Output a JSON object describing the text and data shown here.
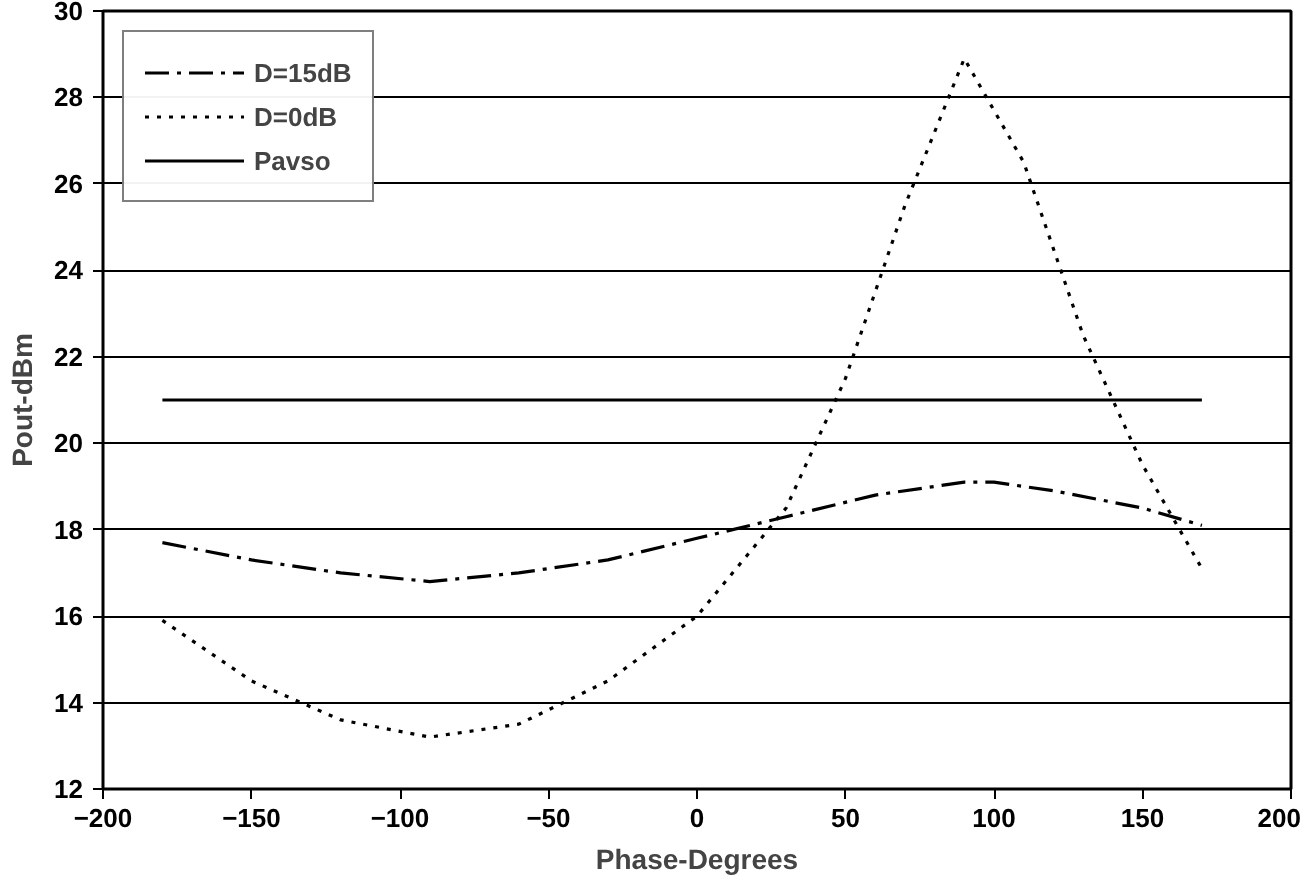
{
  "chart_data": {
    "type": "line",
    "xlabel": "Phase-Degrees",
    "ylabel": "Pout-dBm",
    "xlim": [
      -200,
      200
    ],
    "xticks": [
      -200,
      -150,
      -100,
      -50,
      0,
      50,
      100,
      150,
      200
    ],
    "ylim": [
      12,
      30
    ],
    "yticks": [
      12,
      14,
      16,
      18,
      20,
      22,
      24,
      26,
      28,
      30
    ],
    "grid": "y",
    "legend": "top left",
    "marker": "none",
    "series": [
      {
        "name": "D=15dB",
        "color": "#000000",
        "line_style": "dashdot",
        "x": [
          -180,
          -150,
          -120,
          -90,
          -60,
          -30,
          0,
          30,
          60,
          90,
          100,
          120,
          150,
          170
        ],
        "values": [
          17.7,
          17.3,
          17.0,
          16.8,
          17.0,
          17.3,
          17.8,
          18.3,
          18.8,
          19.1,
          19.1,
          18.9,
          18.5,
          18.1
        ]
      },
      {
        "name": "D=0dB",
        "color": "#000000",
        "line_style": "dotted",
        "x": [
          -180,
          -150,
          -120,
          -90,
          -60,
          -30,
          0,
          30,
          50,
          70,
          90,
          110,
          130,
          150,
          170
        ],
        "values": [
          15.9,
          14.5,
          13.6,
          13.2,
          13.5,
          14.5,
          16.0,
          18.5,
          21.5,
          25.5,
          28.9,
          26.5,
          22.5,
          19.5,
          17.1
        ]
      },
      {
        "name": "Pavso",
        "color": "#000000",
        "line_style": "solid",
        "x": [
          -180,
          170
        ],
        "values": [
          21,
          21
        ]
      }
    ]
  }
}
